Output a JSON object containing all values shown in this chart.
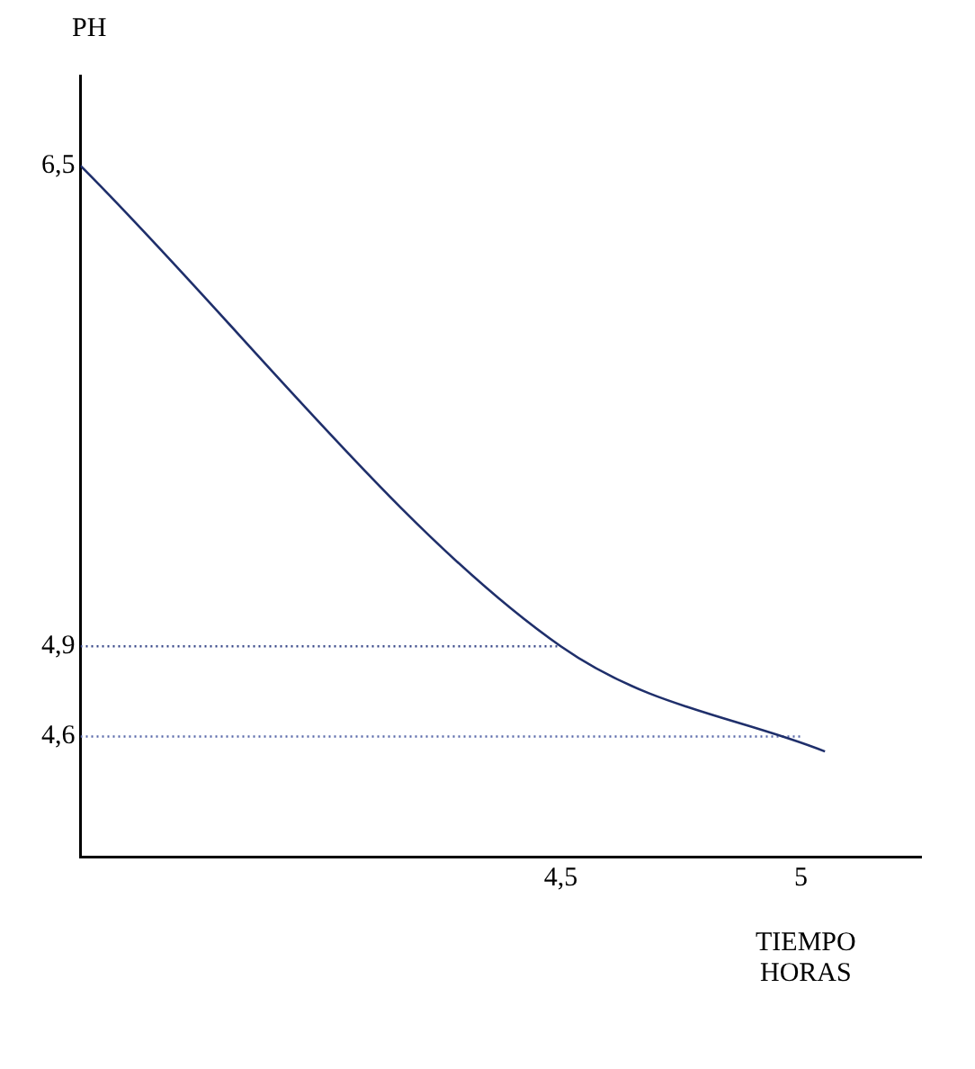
{
  "chart_data": {
    "type": "line",
    "ylabel": "PH",
    "xlabel": "TIEMPO\nHORAS",
    "xlim": [
      3.5,
      5.25
    ],
    "xticks": [
      {
        "value": 4.5,
        "label": "4,5"
      },
      5
    ],
    "ylim": [
      4.2,
      6.8
    ],
    "yticks": [
      {
        "value": 4.6,
        "label": "4,6"
      },
      {
        "value": 4.9,
        "label": "4,9"
      },
      {
        "value": 6.5,
        "label": "6,5"
      }
    ],
    "grid": false,
    "legend": false,
    "marker": "none",
    "series": [
      {
        "color": "#1f2f6b",
        "x": [
          3.5,
          4.5,
          5.05
        ],
        "values": [
          6.5,
          4.9,
          4.55
        ],
        "line_style": "solid"
      },
      {
        "color": "#3a4a8a",
        "x": [
          3.5,
          4.5
        ],
        "values": [
          4.9,
          4.9
        ],
        "line_style": "dotted"
      },
      {
        "color": "#5a6aaa",
        "x": [
          3.5,
          5
        ],
        "values": [
          4.6,
          4.6
        ],
        "line_style": "dotted"
      }
    ]
  }
}
